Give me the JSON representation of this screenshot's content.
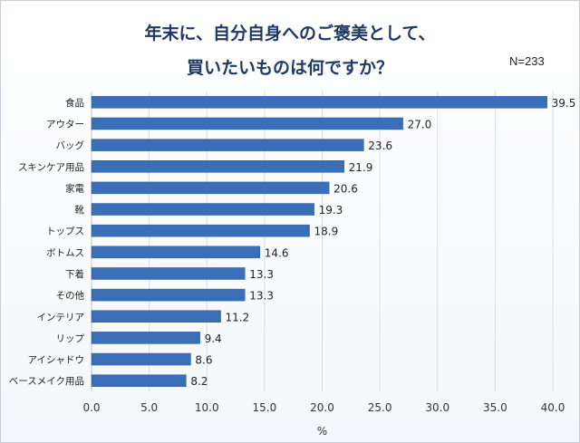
{
  "chart_data": {
    "type": "bar",
    "orientation": "horizontal",
    "title_line1": "年末に、自分自身へのご褒美として、",
    "title_line2": "買いたいものは何ですか？",
    "note": "N=233",
    "xlabel": "%",
    "xlim": [
      0,
      40
    ],
    "xticks": [
      "0.0",
      "5.0",
      "10.0",
      "15.0",
      "20.0",
      "25.0",
      "30.0",
      "35.0",
      "40.0"
    ],
    "grid": true,
    "bar_color": "#3a6fb7",
    "categories": [
      "食品",
      "アウター",
      "バッグ",
      "スキンケア用品",
      "家電",
      "靴",
      "トップス",
      "ボトムス",
      "下着",
      "その他",
      "インテリア",
      "リップ",
      "アイシャドウ",
      "ベースメイク用品"
    ],
    "values": [
      39.5,
      27.0,
      23.6,
      21.9,
      20.6,
      19.3,
      18.9,
      14.6,
      13.3,
      13.3,
      11.2,
      9.4,
      8.6,
      8.2
    ],
    "value_labels": [
      "39.5",
      "27.0",
      "23.6",
      "21.9",
      "20.6",
      "19.3",
      "18.9",
      "14.6",
      "13.3",
      "13.3",
      "11.2",
      "9.4",
      "8.6",
      "8.2"
    ]
  }
}
